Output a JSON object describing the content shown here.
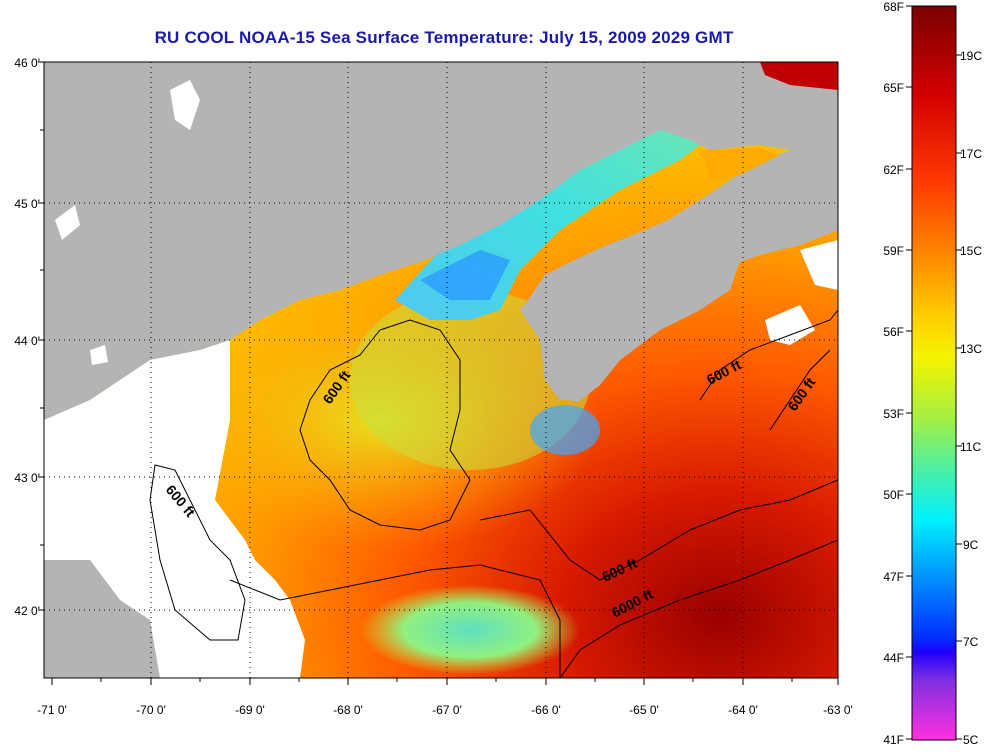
{
  "title": "RU COOL  NOAA-15  Sea Surface Temperature:  July 15, 2009 2029 GMT",
  "lon_labels": [
    "-71 0'",
    "-70 0'",
    "-69 0'",
    "-68 0'",
    "-67 0'",
    "-66 0'",
    "-65 0'",
    "-64 0'",
    "-63 0'"
  ],
  "lat_labels": [
    "46 0'",
    "45 0'",
    "44 0'",
    "43 0'",
    "42 0'"
  ],
  "contour_labels": [
    "600 ft",
    "600 ft",
    "600 ft",
    "600 ft",
    "600 ft",
    "6000 ft"
  ],
  "colorbar": {
    "fahrenheit": [
      "68F",
      "65F",
      "62F",
      "59F",
      "56F",
      "53F",
      "50F",
      "47F",
      "44F",
      "41F"
    ],
    "celsius": [
      "19C",
      "17C",
      "15C",
      "13C",
      "11C",
      "9C",
      "7C",
      "5C"
    ]
  },
  "colors": {
    "land": "#b4b4b4",
    "title": "#1a1aa8",
    "contour": "#000000"
  }
}
